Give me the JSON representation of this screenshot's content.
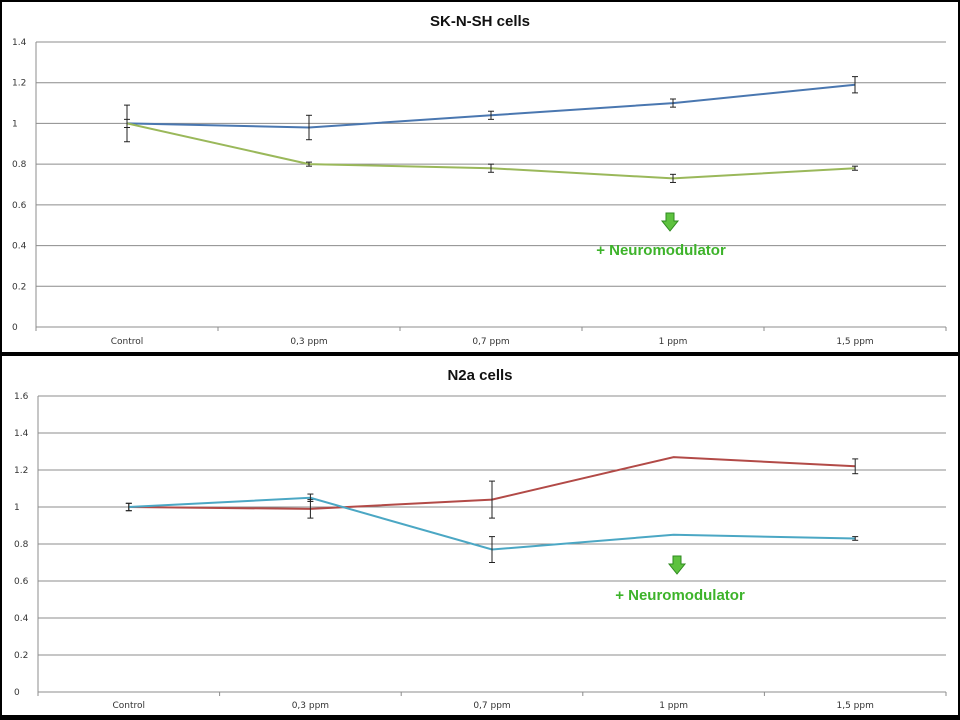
{
  "chart_data": [
    {
      "type": "line",
      "title": "SK-N-SH cells",
      "xlabel": "",
      "ylabel": "",
      "categories": [
        "Control",
        "0,3 ppm",
        "0,7 ppm",
        "1 ppm",
        "1,5 ppm"
      ],
      "ylim": [
        0,
        1.4
      ],
      "yticks": [
        "0",
        "0.2",
        "0.4",
        "0.6",
        "0.8",
        "1",
        "1.2",
        "1.4"
      ],
      "grid": true,
      "series": [
        {
          "values": [
            1.0,
            0.98,
            1.04,
            1.1,
            1.19
          ],
          "errors": [
            0.09,
            0.06,
            0.02,
            0.02,
            0.04
          ],
          "color": "#4a77b0"
        },
        {
          "values": [
            1.0,
            0.8,
            0.78,
            0.73,
            0.78
          ],
          "errors": [
            0.02,
            0.01,
            0.02,
            0.02,
            0.01
          ],
          "color": "#9ab85a"
        }
      ],
      "annotation": {
        "text": "+ Neuromodulator",
        "arrow_color": "#5ec23f"
      }
    },
    {
      "type": "line",
      "title": "N2a cells",
      "xlabel": "",
      "ylabel": "",
      "categories": [
        "Control",
        "0,3 ppm",
        "0,7 ppm",
        "1 ppm",
        "1,5 ppm"
      ],
      "ylim": [
        0,
        1.6
      ],
      "yticks": [
        "0",
        "0.2",
        "0.4",
        "0.6",
        "0.8",
        "1",
        "1.2",
        "1.4",
        "1.6"
      ],
      "grid": true,
      "series": [
        {
          "values": [
            1.0,
            0.99,
            1.04,
            1.27,
            1.22
          ],
          "errors": [
            0.02,
            0.05,
            0.1,
            0.0,
            0.04
          ],
          "color": "#b24a47"
        },
        {
          "values": [
            1.0,
            1.05,
            0.77,
            0.85,
            0.83
          ],
          "errors": [
            0.02,
            0.02,
            0.07,
            0.0,
            0.01
          ],
          "color": "#4ba7c4"
        }
      ],
      "annotation": {
        "text": "+ Neuromodulator",
        "arrow_color": "#5ec23f"
      }
    }
  ]
}
